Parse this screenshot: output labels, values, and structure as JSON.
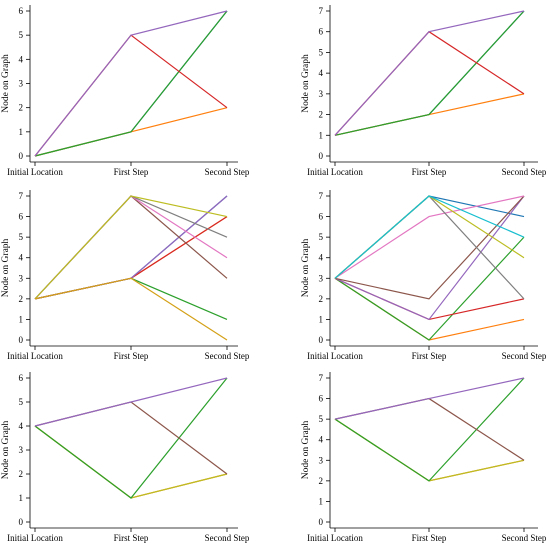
{
  "chart_data": [
    {
      "type": "line",
      "categories": [
        "Initial Location",
        "First Step",
        "Second Step"
      ],
      "ylabel": "Node on Graph",
      "ylim": [
        0,
        6
      ],
      "yticks": [
        0,
        1,
        2,
        3,
        4,
        5,
        6
      ],
      "series": [
        {
          "color": "#1f77b4",
          "values": [
            0,
            1,
            6
          ]
        },
        {
          "color": "#ff7f0e",
          "values": [
            0,
            1,
            2
          ]
        },
        {
          "color": "#2ca02c",
          "values": [
            0,
            1,
            6
          ]
        },
        {
          "color": "#d62728",
          "values": [
            0,
            5,
            2
          ]
        },
        {
          "color": "#9467bd",
          "values": [
            0,
            5,
            6
          ]
        }
      ]
    },
    {
      "type": "line",
      "categories": [
        "Initial Location",
        "First Step",
        "Second Step"
      ],
      "ylabel": "Node on Graph",
      "ylim": [
        0,
        7
      ],
      "yticks": [
        0,
        1,
        2,
        3,
        4,
        5,
        6,
        7
      ],
      "series": [
        {
          "color": "#1f77b4",
          "values": [
            1,
            2,
            7
          ]
        },
        {
          "color": "#ff7f0e",
          "values": [
            1,
            2,
            3
          ]
        },
        {
          "color": "#2ca02c",
          "values": [
            1,
            2,
            7
          ]
        },
        {
          "color": "#d62728",
          "values": [
            1,
            6,
            3
          ]
        },
        {
          "color": "#9467bd",
          "values": [
            1,
            6,
            7
          ]
        }
      ]
    },
    {
      "type": "line",
      "categories": [
        "Initial Location",
        "First Step",
        "Second Step"
      ],
      "ylabel": "Node on Graph",
      "ylim": [
        0,
        7
      ],
      "yticks": [
        0,
        1,
        2,
        3,
        4,
        5,
        6,
        7
      ],
      "series": [
        {
          "color": "#1f77b4",
          "values": [
            2,
            3,
            7
          ]
        },
        {
          "color": "#ff7f0e",
          "values": [
            2,
            3,
            6
          ]
        },
        {
          "color": "#2ca02c",
          "values": [
            2,
            3,
            1
          ]
        },
        {
          "color": "#d62728",
          "values": [
            2,
            3,
            6
          ]
        },
        {
          "color": "#9467bd",
          "values": [
            2,
            3,
            7
          ]
        },
        {
          "color": "#8c564b",
          "values": [
            2,
            7,
            3
          ]
        },
        {
          "color": "#e377c2",
          "values": [
            2,
            7,
            4
          ]
        },
        {
          "color": "#7f7f7f",
          "values": [
            2,
            7,
            5
          ]
        },
        {
          "color": "#bcbd22",
          "values": [
            2,
            7,
            6
          ]
        },
        {
          "color": "#d4a017",
          "values": [
            2,
            3,
            0
          ]
        }
      ]
    },
    {
      "type": "line",
      "categories": [
        "Initial Location",
        "First Step",
        "Second Step"
      ],
      "ylabel": "Node on Graph",
      "ylim": [
        0,
        7
      ],
      "yticks": [
        0,
        1,
        2,
        3,
        4,
        5,
        6,
        7
      ],
      "series": [
        {
          "color": "#1f77b4",
          "values": [
            3,
            7,
            6
          ]
        },
        {
          "color": "#ff7f0e",
          "values": [
            3,
            0,
            1
          ]
        },
        {
          "color": "#2ca02c",
          "values": [
            3,
            0,
            5
          ]
        },
        {
          "color": "#d62728",
          "values": [
            3,
            1,
            2
          ]
        },
        {
          "color": "#9467bd",
          "values": [
            3,
            1,
            7
          ]
        },
        {
          "color": "#8c564b",
          "values": [
            3,
            2,
            7
          ]
        },
        {
          "color": "#e377c2",
          "values": [
            3,
            6,
            7
          ]
        },
        {
          "color": "#7f7f7f",
          "values": [
            3,
            7,
            2
          ]
        },
        {
          "color": "#bcbd22",
          "values": [
            3,
            7,
            4
          ]
        },
        {
          "color": "#17becf",
          "values": [
            3,
            7,
            5
          ]
        }
      ]
    },
    {
      "type": "line",
      "categories": [
        "Initial Location",
        "First Step",
        "Second Step"
      ],
      "ylabel": "Node on Graph",
      "ylim": [
        0,
        6
      ],
      "yticks": [
        0,
        1,
        2,
        3,
        4,
        5,
        6
      ],
      "series": [
        {
          "color": "#ff7f0e",
          "values": [
            4,
            1,
            2
          ]
        },
        {
          "color": "#bcbd22",
          "values": [
            4,
            1,
            2
          ]
        },
        {
          "color": "#2ca02c",
          "values": [
            4,
            1,
            6
          ]
        },
        {
          "color": "#8c564b",
          "values": [
            4,
            5,
            2
          ]
        },
        {
          "color": "#9467bd",
          "values": [
            4,
            5,
            6
          ]
        }
      ]
    },
    {
      "type": "line",
      "categories": [
        "Initial Location",
        "First Step",
        "Second Step"
      ],
      "ylabel": "Node on Graph",
      "ylim": [
        0,
        7
      ],
      "yticks": [
        0,
        1,
        2,
        3,
        4,
        5,
        6,
        7
      ],
      "series": [
        {
          "color": "#ff7f0e",
          "values": [
            5,
            2,
            3
          ]
        },
        {
          "color": "#bcbd22",
          "values": [
            5,
            2,
            3
          ]
        },
        {
          "color": "#2ca02c",
          "values": [
            5,
            2,
            7
          ]
        },
        {
          "color": "#8c564b",
          "values": [
            5,
            6,
            3
          ]
        },
        {
          "color": "#9467bd",
          "values": [
            5,
            6,
            7
          ]
        }
      ]
    }
  ]
}
